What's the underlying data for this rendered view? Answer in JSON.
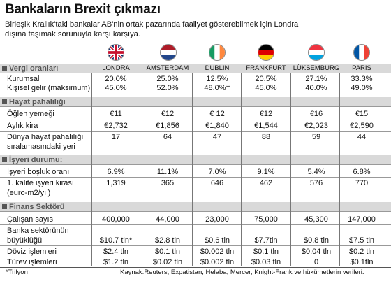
{
  "title": "Bankaların Brexit çıkmazı",
  "subtitle": "Birleşik Krallık'taki bankalar AB'nin ortak pazarında faaliyet gösterebilmek için Londra dışına taşımak sorunuyla karşı karşıya.",
  "cities": [
    "LONDRA",
    "AMSTERDAM",
    "DUBLIN",
    "FRANKFURT",
    "LÜKSEMBURG",
    "PARIS"
  ],
  "flags": [
    "uk-flag-icon",
    "netherlands-flag-icon",
    "ireland-flag-icon",
    "germany-flag-icon",
    "luxembourg-flag-icon",
    "france-flag-icon"
  ],
  "sections": {
    "tax": "Vergi oranları",
    "cost": "Hayat pahalılığı",
    "office": "İşyeri durumu:",
    "finance": "Finans Sektörü"
  },
  "rows": {
    "kurumsal": {
      "label": "Kurumsal",
      "values": [
        "20.0%",
        "25.0%",
        "12.5%",
        "20.5%",
        "27.1%",
        "33.3%"
      ]
    },
    "kisisel": {
      "label": "Kişisel gelir (maksimum)",
      "values": [
        "45.0%",
        "52.0%",
        "48.0%†",
        "45.0%",
        "40.0%",
        "49.0%"
      ]
    },
    "ogle": {
      "label": "Öğlen yemeği",
      "values": [
        "€11",
        "€12",
        "€ 12",
        "€12",
        "€16",
        "€15"
      ]
    },
    "kira": {
      "label": "Aylık kira",
      "values": [
        "€2,732",
        "€1,856",
        "€1,840",
        "€1,544",
        "€2,023",
        "€2,590"
      ]
    },
    "dunya": {
      "label1": "Dünya hayat pahalılığı",
      "label2": "sıralamasındaki yeri",
      "values": [
        "17",
        "64",
        "47",
        "88",
        "59",
        "44"
      ]
    },
    "bosluk": {
      "label": "İşyeri boşluk oranı",
      "values": [
        "6.9%",
        "11.1%",
        "7.0%",
        "9.1%",
        "5.4%",
        "6.8%"
      ]
    },
    "kalite": {
      "label1": "1. kalite işyeri kirası",
      "label2": "(euro-m2/yıl)",
      "values": [
        "1,319",
        "365",
        "646",
        "462",
        "576",
        "770"
      ]
    },
    "calisan": {
      "label": "Çalışan sayısı",
      "values": [
        "400,000",
        "44,000",
        "23,000",
        "75,000",
        "45,300",
        "147,000"
      ]
    },
    "banka": {
      "label1": "Banka sektörünün",
      "label2": "büyüklüğü",
      "values": [
        "$10.7 tln*",
        "$2.8 tln",
        "$0.6 tln",
        "$7.7tln",
        "$0.8 tln",
        "$7.5 tln"
      ]
    },
    "doviz": {
      "label": "Döviz işlemleri",
      "values": [
        "$2.4 tln",
        "$0.1 tln",
        "$0.002 tln",
        "$0.1 tln",
        "$0.04 tln",
        "$0.2 tln"
      ]
    },
    "turev": {
      "label": "Türev işlemleri",
      "values": [
        "$1.2 tln",
        "$0.02 tln",
        "$0.002 tln",
        "$0.03 tln",
        "0",
        "$0.1tln"
      ]
    }
  },
  "footnote": "*Trilyon",
  "source": "Kaynak:Reuters, Expatistan, Helaba, Mercer, Knight-Frank ve hükümetlerin verileri."
}
